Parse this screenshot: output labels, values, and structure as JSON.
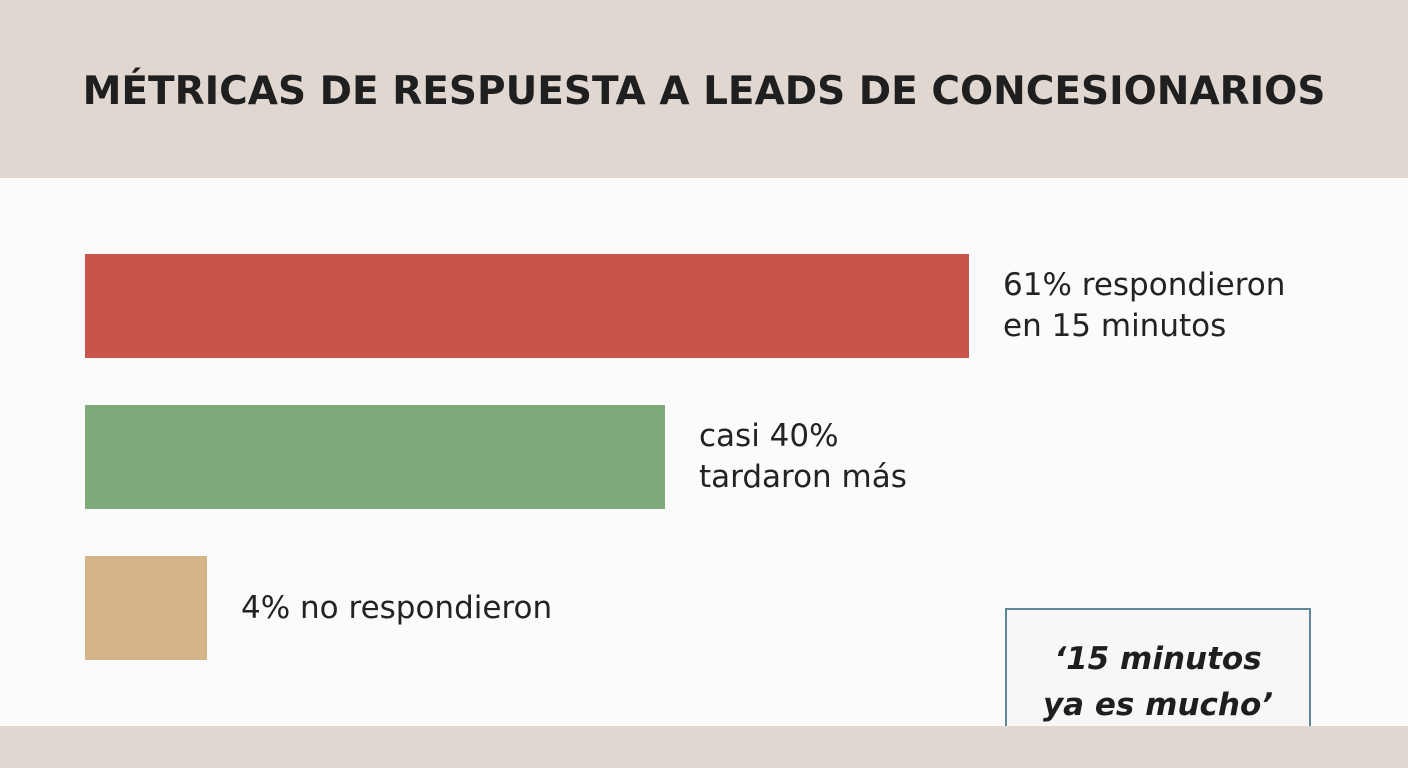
{
  "chart_data": {
    "type": "bar",
    "orientation": "horizontal",
    "title": "MÉTRICAS DE RESPUESTA A LEADS DE CONCESIONARIOS",
    "categories": [
      "61% respondieron en 15 minutos",
      "casi 40% tardaron más",
      "4% no respondieron"
    ],
    "values": [
      61,
      40,
      4
    ],
    "value_unit": "%",
    "colors": [
      "#c9554a",
      "#7faa7c",
      "#d5b48a"
    ],
    "labels": [
      [
        "61% respondieron",
        "en 15 minutos"
      ],
      [
        "casi 40%",
        "tardaron más"
      ],
      [
        "4% no respondieron"
      ]
    ],
    "annotation": [
      "‘15 minutos",
      "ya es mucho’"
    ],
    "xlim": [
      0,
      61
    ],
    "grid": false,
    "legend": "none"
  }
}
